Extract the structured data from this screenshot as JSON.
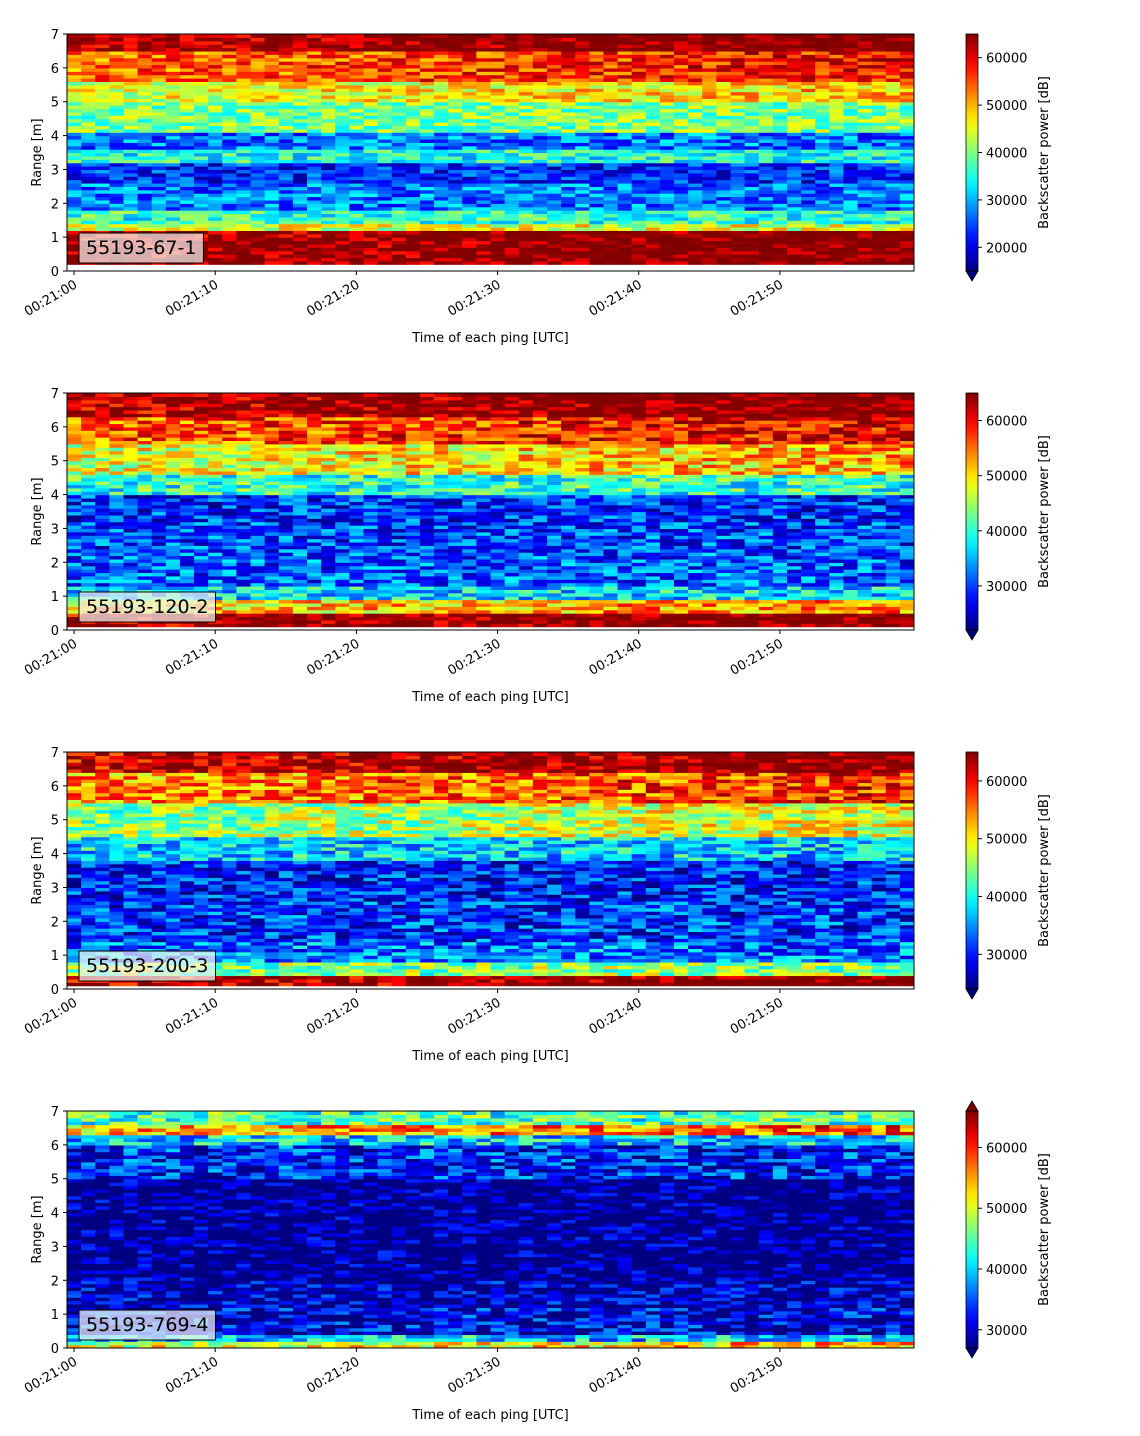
{
  "chart_data": [
    {
      "type": "heatmap",
      "label": "55193-67-1",
      "xlabel": "Time of each ping [UTC]",
      "ylabel": "Range [m]",
      "colorbar_label": "Backscatter power [dB]",
      "x_ticks": [
        "00:21:00",
        "00:21:10",
        "00:21:20",
        "00:21:30",
        "00:21:40",
        "00:21:50"
      ],
      "x_range": [
        "00:20:59.5",
        "00:21:59.5"
      ],
      "y_ticks": [
        0,
        1,
        2,
        3,
        4,
        5,
        6,
        7
      ],
      "ylim": [
        0,
        7
      ],
      "colorbar_ticks": [
        20000,
        30000,
        40000,
        50000,
        60000
      ],
      "colorbar_range": [
        15000,
        65000
      ],
      "colorbar_extend": "min",
      "colormap": "jet",
      "bands": [
        {
          "range": [
            0.2,
            1.2
          ],
          "value": 65000
        },
        {
          "range": [
            1.2,
            1.4
          ],
          "value": 45000
        },
        {
          "range": [
            1.4,
            1.8
          ],
          "value": 36000
        },
        {
          "range": [
            1.8,
            2.6
          ],
          "value": 27000
        },
        {
          "range": [
            2.6,
            3.2
          ],
          "value": 23000
        },
        {
          "range": [
            3.2,
            3.6
          ],
          "value": 35000
        },
        {
          "range": [
            3.6,
            4.1
          ],
          "value": 27000
        },
        {
          "range": [
            4.1,
            5.0
          ],
          "value": 40000
        },
        {
          "range": [
            5.0,
            5.6
          ],
          "value": 47000
        },
        {
          "range": [
            5.6,
            6.5
          ],
          "value": 56000
        },
        {
          "range": [
            6.5,
            7.0
          ],
          "value": 65000
        }
      ]
    },
    {
      "type": "heatmap",
      "label": "55193-120-2",
      "xlabel": "Time of each ping [UTC]",
      "ylabel": "Range [m]",
      "colorbar_label": "Backscatter power [dB]",
      "x_ticks": [
        "00:21:00",
        "00:21:10",
        "00:21:20",
        "00:21:30",
        "00:21:40",
        "00:21:50"
      ],
      "x_range": [
        "00:20:59.5",
        "00:21:59.5"
      ],
      "y_ticks": [
        0,
        1,
        2,
        3,
        4,
        5,
        6,
        7
      ],
      "ylim": [
        0,
        7
      ],
      "colorbar_ticks": [
        30000,
        40000,
        50000,
        60000
      ],
      "colorbar_range": [
        22000,
        65000
      ],
      "colorbar_extend": "min",
      "colormap": "jet",
      "bands": [
        {
          "range": [
            0.1,
            0.5
          ],
          "value": 65000
        },
        {
          "range": [
            0.5,
            0.9
          ],
          "value": 52000
        },
        {
          "range": [
            0.9,
            1.3
          ],
          "value": 37000
        },
        {
          "range": [
            1.3,
            2.4
          ],
          "value": 31000
        },
        {
          "range": [
            2.4,
            3.2
          ],
          "value": 30000
        },
        {
          "range": [
            3.2,
            4.0
          ],
          "value": 29000
        },
        {
          "range": [
            4.0,
            4.6
          ],
          "value": 40000
        },
        {
          "range": [
            4.6,
            5.5
          ],
          "value": 50000
        },
        {
          "range": [
            5.5,
            6.3
          ],
          "value": 58000
        },
        {
          "range": [
            6.3,
            7.0
          ],
          "value": 65000
        }
      ]
    },
    {
      "type": "heatmap",
      "label": "55193-200-3",
      "xlabel": "Time of each ping [UTC]",
      "ylabel": "Range [m]",
      "colorbar_label": "Backscatter power [dB]",
      "x_ticks": [
        "00:21:00",
        "00:21:10",
        "00:21:20",
        "00:21:30",
        "00:21:40",
        "00:21:50"
      ],
      "x_range": [
        "00:20:59.5",
        "00:21:59.5"
      ],
      "y_ticks": [
        0,
        1,
        2,
        3,
        4,
        5,
        6,
        7
      ],
      "ylim": [
        0,
        7
      ],
      "colorbar_ticks": [
        30000,
        40000,
        50000,
        60000
      ],
      "colorbar_range": [
        24000,
        65000
      ],
      "colorbar_extend": "min",
      "colormap": "jet",
      "bands": [
        {
          "range": [
            0.1,
            0.4
          ],
          "value": 65000
        },
        {
          "range": [
            0.4,
            0.8
          ],
          "value": 45000
        },
        {
          "range": [
            0.8,
            1.4
          ],
          "value": 34000
        },
        {
          "range": [
            1.4,
            2.6
          ],
          "value": 31000
        },
        {
          "range": [
            2.6,
            3.8
          ],
          "value": 30000
        },
        {
          "range": [
            3.8,
            4.5
          ],
          "value": 38000
        },
        {
          "range": [
            4.5,
            5.5
          ],
          "value": 47000
        },
        {
          "range": [
            5.5,
            6.4
          ],
          "value": 56000
        },
        {
          "range": [
            6.4,
            7.0
          ],
          "value": 64000
        }
      ]
    },
    {
      "type": "heatmap",
      "label": "55193-769-4",
      "xlabel": "Time of each ping [UTC]",
      "ylabel": "Range [m]",
      "colorbar_label": "Backscatter power [dB]",
      "x_ticks": [
        "00:21:00",
        "00:21:10",
        "00:21:20",
        "00:21:30",
        "00:21:40",
        "00:21:50"
      ],
      "x_range": [
        "00:20:59.5",
        "00:21:59.5"
      ],
      "y_ticks": [
        0,
        1,
        2,
        3,
        4,
        5,
        6,
        7
      ],
      "ylim": [
        0,
        7
      ],
      "colorbar_ticks": [
        30000,
        40000,
        50000,
        60000
      ],
      "colorbar_range": [
        27000,
        66000
      ],
      "colorbar_extend": "both",
      "colormap": "jet",
      "bands": [
        {
          "range": [
            0.05,
            0.2
          ],
          "value": 52000
        },
        {
          "range": [
            0.2,
            0.4
          ],
          "value": 40000
        },
        {
          "range": [
            0.4,
            1.2
          ],
          "value": 31000
        },
        {
          "range": [
            1.2,
            2.0
          ],
          "value": 29000
        },
        {
          "range": [
            2.0,
            5.0
          ],
          "value": 27000
        },
        {
          "range": [
            5.0,
            6.0
          ],
          "value": 33000
        },
        {
          "range": [
            6.0,
            6.3
          ],
          "value": 40000
        },
        {
          "range": [
            6.3,
            6.6
          ],
          "value": 56000
        },
        {
          "range": [
            6.6,
            7.0
          ],
          "value": 44000
        }
      ]
    }
  ]
}
